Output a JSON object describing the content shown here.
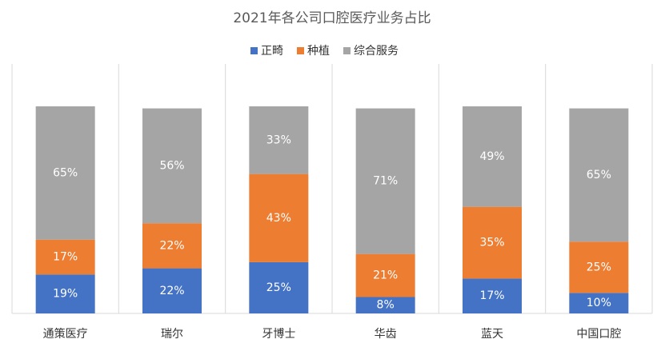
{
  "chart_data": {
    "type": "stacked-bar",
    "title": "2021年各公司口腔医疗业务占比",
    "categories": [
      "通策医疗",
      "瑞尔",
      "牙博士",
      "华齿",
      "蓝天",
      "中国口腔"
    ],
    "series": [
      {
        "name": "正畸",
        "color": "#4472c4",
        "values": [
          19,
          22,
          25,
          8,
          17,
          10
        ],
        "value_labels": [
          "19%",
          "22%",
          "25%",
          "8%",
          "17%",
          "10%"
        ]
      },
      {
        "name": "种植",
        "color": "#ed7d31",
        "values": [
          17,
          22,
          43,
          21,
          35,
          25
        ],
        "value_labels": [
          "17%",
          "22%",
          "43%",
          "21%",
          "35%",
          "25%"
        ]
      },
      {
        "name": "综合服务",
        "color": "#a5a5a5",
        "values": [
          65,
          56,
          33,
          71,
          49,
          65
        ],
        "value_labels": [
          "65%",
          "56%",
          "33%",
          "71%",
          "49%",
          "65%"
        ]
      }
    ],
    "grid": true,
    "legend": "top"
  }
}
